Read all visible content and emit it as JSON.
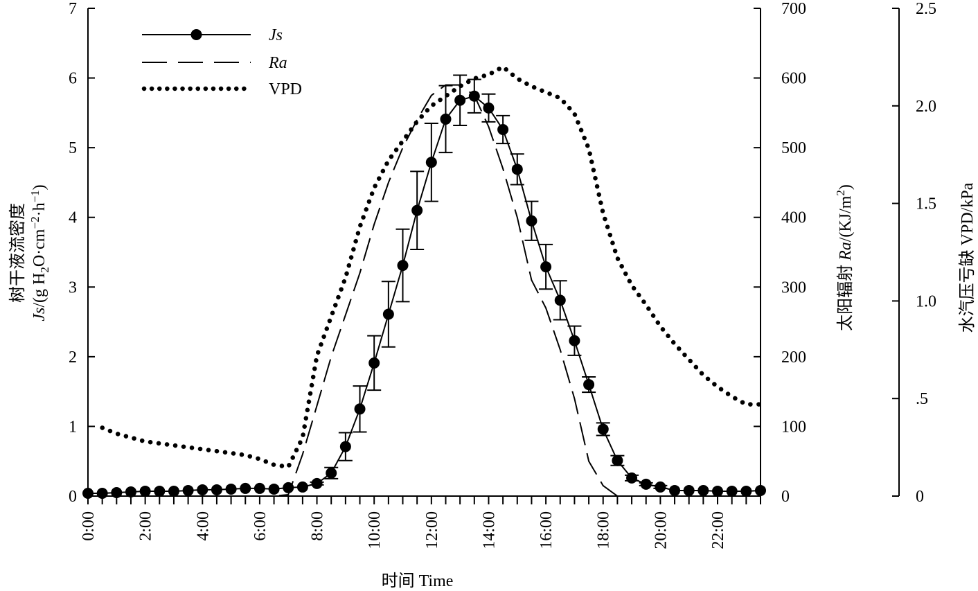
{
  "chart_data": {
    "type": "line",
    "title": "",
    "xlabel": "时间 Time",
    "x_ticks": [
      "0:00",
      "2:00",
      "4:00",
      "6:00",
      "8:00",
      "10:00",
      "12:00",
      "14:00",
      "16:00",
      "18:00",
      "20:00",
      "22:00"
    ],
    "xlim": [
      0,
      23.5
    ],
    "axes": {
      "left": {
        "label_line1": "树干液流密度",
        "label_line2_italic": "Js",
        "label_line2_rest": "/(g H",
        "label_sub2": "2",
        "label_mid": "O·cm",
        "label_sup_neg2": "−2",
        "label_mid2": "·h",
        "label_sup_neg1": "−1",
        "label_end": ")",
        "ylim": [
          0,
          7
        ],
        "ticks": [
          "0",
          "1",
          "2",
          "3",
          "4",
          "5",
          "6",
          "7"
        ]
      },
      "right1": {
        "label_prefix": "太阳辐射 ",
        "label_italic": "Ra",
        "label_suffix": "/(KJ/m",
        "label_sup": "2",
        "label_end": ")",
        "ylim": [
          0,
          700
        ],
        "ticks": [
          "0",
          "100",
          "200",
          "300",
          "400",
          "500",
          "600",
          "700"
        ]
      },
      "right2": {
        "label": "水汽压亏缺 VPD/kPa",
        "ylim": [
          0,
          2.5
        ],
        "ticks": [
          "0",
          ".5",
          "1.0",
          "1.5",
          "2.0",
          "2.5"
        ]
      }
    },
    "legend": {
      "position": "top-left",
      "entries": [
        {
          "label": "Js",
          "italic": true,
          "style": "solid-marker"
        },
        {
          "label": "Ra",
          "italic": true,
          "style": "dashed"
        },
        {
          "label": "VPD",
          "italic": false,
          "style": "dotted"
        }
      ]
    },
    "series": [
      {
        "name": "Js",
        "axis": "left",
        "x": [
          0,
          0.5,
          1,
          1.5,
          2,
          2.5,
          3,
          3.5,
          4,
          4.5,
          5,
          5.5,
          6,
          6.5,
          7,
          7.5,
          8,
          8.5,
          9,
          9.5,
          10,
          10.5,
          11,
          11.5,
          12,
          12.5,
          13,
          13.5,
          14,
          14.5,
          15,
          15.5,
          16,
          16.5,
          17,
          17.5,
          18,
          18.5,
          19,
          19.5,
          20,
          20.5,
          21,
          21.5,
          22,
          22.5,
          23,
          23.5
        ],
        "y": [
          0.04,
          0.04,
          0.05,
          0.06,
          0.07,
          0.07,
          0.07,
          0.08,
          0.09,
          0.09,
          0.1,
          0.11,
          0.11,
          0.1,
          0.12,
          0.13,
          0.18,
          0.33,
          0.71,
          1.25,
          1.91,
          2.61,
          3.31,
          4.1,
          4.79,
          5.41,
          5.68,
          5.74,
          5.57,
          5.26,
          4.69,
          3.95,
          3.29,
          2.81,
          2.23,
          1.6,
          0.96,
          0.51,
          0.26,
          0.17,
          0.13,
          0.08,
          0.08,
          0.08,
          0.07,
          0.07,
          0.07,
          0.08
        ],
        "err": [
          0,
          0,
          0,
          0,
          0,
          0,
          0,
          0,
          0,
          0,
          0,
          0,
          0,
          0,
          0,
          0,
          0.02,
          0.08,
          0.2,
          0.33,
          0.39,
          0.47,
          0.52,
          0.56,
          0.56,
          0.48,
          0.36,
          0.24,
          0.2,
          0.2,
          0.22,
          0.28,
          0.32,
          0.28,
          0.21,
          0.11,
          0.09,
          0.07,
          0.04,
          0.02,
          0.02,
          0,
          0,
          0,
          0,
          0,
          0,
          0
        ]
      },
      {
        "name": "Ra",
        "axis": "right1",
        "x": [
          0,
          1,
          2,
          3,
          4,
          5,
          6,
          6.5,
          7,
          7.5,
          8,
          8.5,
          9,
          9.5,
          10,
          10.5,
          11,
          11.5,
          12,
          12.5,
          13,
          13.5,
          14,
          14.5,
          15,
          15.5,
          16,
          16.5,
          17,
          17.5,
          18,
          18.5,
          19,
          19.5,
          20,
          21,
          22,
          23,
          23.5
        ],
        "y": [
          0,
          0,
          0,
          0,
          0,
          0,
          0,
          0,
          2,
          60,
          130,
          200,
          260,
          320,
          390,
          450,
          500,
          540,
          575,
          590,
          590,
          575,
          530,
          470,
          400,
          310,
          270,
          210,
          140,
          50,
          15,
          0,
          0,
          0,
          0,
          0,
          0,
          0,
          0
        ]
      },
      {
        "name": "VPD",
        "axis": "right2",
        "x": [
          0.5,
          1,
          1.5,
          2,
          2.5,
          3,
          3.5,
          4,
          4.5,
          5,
          5.5,
          6,
          6.5,
          7,
          7.5,
          8,
          8.5,
          9,
          9.5,
          10,
          10.5,
          11,
          11.5,
          12,
          12.5,
          13,
          13.5,
          14,
          14.5,
          15,
          15.5,
          16,
          16.5,
          17,
          17.5,
          18,
          18.5,
          19,
          19.5,
          20,
          20.5,
          21,
          21.5,
          22,
          22.5,
          23,
          23.5
        ],
        "y": [
          0.35,
          0.32,
          0.3,
          0.28,
          0.27,
          0.26,
          0.25,
          0.24,
          0.23,
          0.22,
          0.21,
          0.19,
          0.16,
          0.15,
          0.3,
          0.72,
          0.92,
          1.12,
          1.38,
          1.58,
          1.72,
          1.82,
          1.92,
          2.0,
          2.05,
          2.1,
          2.14,
          2.16,
          2.2,
          2.14,
          2.1,
          2.07,
          2.04,
          1.96,
          1.78,
          1.45,
          1.22,
          1.08,
          0.98,
          0.87,
          0.78,
          0.7,
          0.62,
          0.56,
          0.51,
          0.47,
          0.47
        ]
      }
    ]
  }
}
